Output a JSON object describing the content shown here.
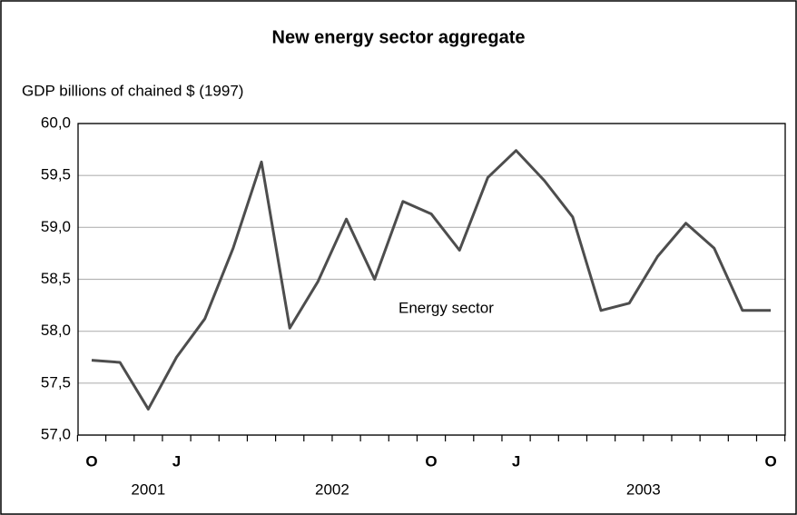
{
  "chart_data": {
    "type": "line",
    "title": "New energy sector aggregate",
    "y_axis_label": "GDP billions of chained $ (1997)",
    "categories": [
      "O",
      null,
      null,
      "J",
      null,
      null,
      null,
      null,
      null,
      null,
      null,
      null,
      "O",
      null,
      null,
      "J",
      null,
      null,
      null,
      null,
      null,
      null,
      null,
      null,
      "O"
    ],
    "years": [
      "2001",
      "2002",
      "2003"
    ],
    "series": [
      {
        "name": "Energy sector",
        "color": "#4d4d4d",
        "values": [
          57.72,
          57.7,
          57.25,
          57.75,
          58.12,
          58.8,
          59.63,
          58.03,
          58.48,
          59.08,
          58.5,
          59.25,
          59.13,
          58.78,
          59.48,
          59.74,
          59.45,
          59.1,
          58.2,
          58.27,
          58.72,
          59.04,
          58.8,
          58.2,
          58.2
        ]
      }
    ],
    "ylim": [
      57,
      60
    ],
    "yticks": [
      {
        "value": 57,
        "label": "57,0"
      },
      {
        "value": 57.5,
        "label": "57,5"
      },
      {
        "value": 58,
        "label": "58,0"
      },
      {
        "value": 58.5,
        "label": "58,5"
      },
      {
        "value": 59,
        "label": "59,0"
      },
      {
        "value": 59.5,
        "label": "59,5"
      },
      {
        "value": 60,
        "label": "60,0"
      }
    ],
    "grid": true
  }
}
